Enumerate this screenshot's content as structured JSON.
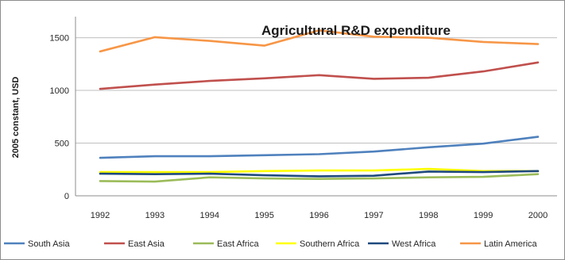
{
  "chart_data": {
    "type": "line",
    "title": "Agricultural R&D expenditure",
    "xlabel": "",
    "ylabel": "2005 constant, USD",
    "categories": [
      "1992",
      "1993",
      "1994",
      "1995",
      "1996",
      "1997",
      "1998",
      "1999",
      "2000"
    ],
    "ylim": [
      0,
      1700
    ],
    "yticks": [
      "0",
      "500",
      "1000",
      "1500"
    ],
    "grid": true,
    "legend_position": "bottom",
    "series": [
      {
        "name": "South Asia",
        "color": "#4f81bd",
        "values": [
          360,
          375,
          375,
          385,
          395,
          420,
          460,
          495,
          560
        ]
      },
      {
        "name": "East Asia",
        "color": "#c0504d",
        "values": [
          1015,
          1055,
          1090,
          1115,
          1145,
          1110,
          1120,
          1180,
          1265
        ]
      },
      {
        "name": "East Africa",
        "color": "#9bbb59",
        "values": [
          140,
          135,
          175,
          165,
          160,
          165,
          175,
          180,
          205
        ]
      },
      {
        "name": "Southern Africa",
        "color": "#ffff00",
        "values": [
          225,
          225,
          225,
          235,
          240,
          240,
          255,
          235,
          235
        ]
      },
      {
        "name": "West Africa",
        "color": "#1f497d",
        "values": [
          210,
          205,
          210,
          195,
          185,
          190,
          230,
          225,
          235
        ]
      },
      {
        "name": "Latin America",
        "color": "#f79646",
        "values": [
          1370,
          1505,
          1470,
          1425,
          1570,
          1510,
          1500,
          1460,
          1440
        ]
      }
    ]
  }
}
